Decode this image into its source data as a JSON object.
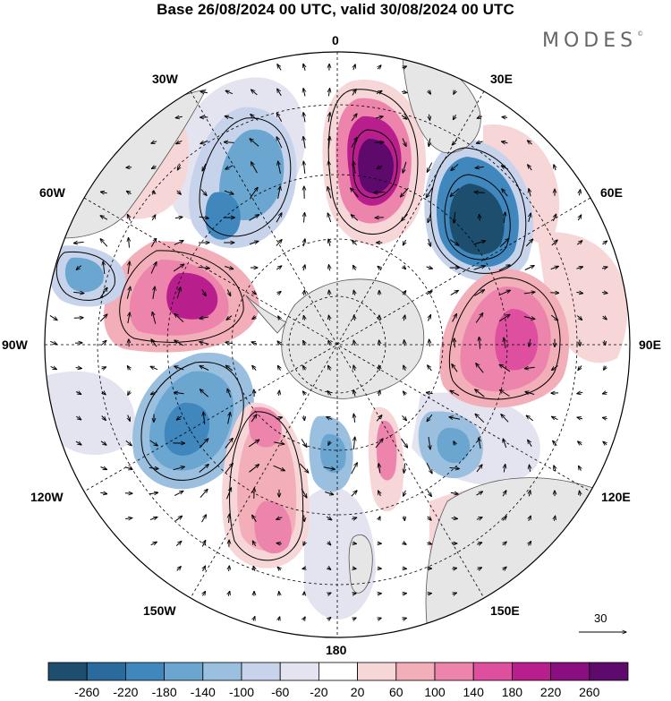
{
  "title": "Base 26/08/2024 00 UTC, valid 30/08/2024 00 UTC",
  "logo": "MODES",
  "logo_mark": "©",
  "longitude_labels": {
    "top": "0",
    "bottom": "180",
    "left": "90W",
    "right": "90E",
    "upper_left_30": "30W",
    "upper_left_60": "60W",
    "upper_right_30": "30E",
    "upper_right_60": "60E",
    "lower_left_120": "120W",
    "lower_left_150": "150W",
    "lower_right_120": "120E",
    "lower_right_150": "150E"
  },
  "reference_vector": {
    "label": "30"
  },
  "colorbar": {
    "ticks": [
      "-260",
      "-220",
      "-180",
      "-140",
      "-100",
      "-60",
      "-20",
      "20",
      "60",
      "100",
      "140",
      "180",
      "220",
      "260"
    ],
    "colors": [
      "#1d4e6e",
      "#2a6a9c",
      "#3f87bd",
      "#6aa6d0",
      "#9bbfdf",
      "#c6d3ea",
      "#e4e3f0",
      "#ffffff",
      "#f7d6d8",
      "#f2aeb9",
      "#ec84ac",
      "#df4f9f",
      "#b91f8c",
      "#8a0e7f",
      "#5d0a6c"
    ]
  },
  "map": {
    "projection": "south polar stereographic",
    "land_color": "#e6e6e6",
    "anomaly_centres": [
      {
        "sign": "positive",
        "near": "0 (upper centre)",
        "level": "260"
      },
      {
        "sign": "negative",
        "near": "60E",
        "level": "-260"
      },
      {
        "sign": "positive",
        "near": "90E",
        "level": "180"
      },
      {
        "sign": "negative",
        "near": "120W",
        "level": "-180"
      },
      {
        "sign": "positive",
        "near": "60W-90W",
        "level": "220"
      },
      {
        "sign": "negative",
        "near": "60W-90W rim",
        "level": "-140"
      }
    ]
  }
}
